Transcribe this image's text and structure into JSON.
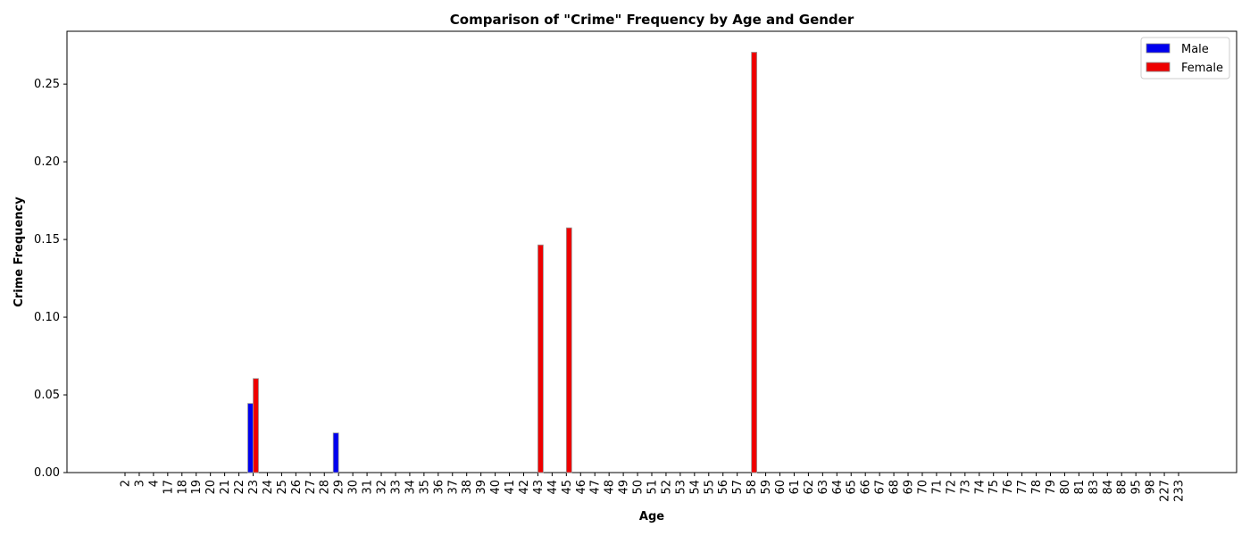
{
  "chart_data": {
    "type": "bar",
    "title": "Comparison of \"Crime\" Frequency by Age and Gender",
    "xlabel": "Age",
    "ylabel": "Crime Frequency",
    "categories": [
      "2",
      "3",
      "4",
      "17",
      "18",
      "19",
      "20",
      "21",
      "22",
      "23",
      "24",
      "25",
      "26",
      "27",
      "28",
      "29",
      "30",
      "31",
      "32",
      "33",
      "34",
      "35",
      "36",
      "37",
      "38",
      "39",
      "40",
      "41",
      "42",
      "43",
      "44",
      "45",
      "46",
      "47",
      "48",
      "49",
      "50",
      "51",
      "52",
      "53",
      "54",
      "55",
      "56",
      "57",
      "58",
      "59",
      "60",
      "61",
      "62",
      "63",
      "64",
      "65",
      "66",
      "67",
      "68",
      "69",
      "70",
      "71",
      "72",
      "73",
      "74",
      "75",
      "76",
      "77",
      "78",
      "79",
      "80",
      "81",
      "83",
      "84",
      "88",
      "95",
      "98",
      "227",
      "233"
    ],
    "series": [
      {
        "name": "Male",
        "color": "#0000ee",
        "values": [
          0,
          0,
          0,
          0,
          0,
          0,
          0,
          0,
          0,
          0.0445,
          0,
          0,
          0,
          0,
          0,
          0.0255,
          0,
          0,
          0,
          0,
          0,
          0,
          0,
          0,
          0,
          0,
          0,
          0,
          0,
          0,
          0,
          0,
          0,
          0,
          0,
          0,
          0,
          0,
          0,
          0,
          0,
          0,
          0,
          0,
          0,
          0,
          0,
          0,
          0,
          0,
          0,
          0,
          0,
          0,
          0,
          0,
          0,
          0,
          0,
          0,
          0,
          0,
          0,
          0,
          0,
          0,
          0,
          0,
          0,
          0,
          0,
          0,
          0,
          0,
          0
        ]
      },
      {
        "name": "Female",
        "color": "#ee0000",
        "values": [
          0,
          0,
          0,
          0,
          0,
          0,
          0,
          0,
          0,
          0.0605,
          0,
          0,
          0,
          0,
          0,
          0,
          0,
          0,
          0,
          0,
          0,
          0,
          0,
          0,
          0,
          0,
          0,
          0,
          0,
          0.1465,
          0,
          0.1575,
          0,
          0,
          0,
          0,
          0,
          0,
          0,
          0,
          0,
          0,
          0,
          0,
          0.2705,
          0,
          0,
          0,
          0,
          0,
          0,
          0,
          0,
          0,
          0,
          0,
          0,
          0,
          0,
          0,
          0,
          0,
          0,
          0,
          0,
          0,
          0,
          0,
          0,
          0,
          0,
          0,
          0,
          0,
          0
        ]
      }
    ],
    "ylim": [
      0,
      0.284
    ],
    "yticks": [
      "0.00",
      "0.05",
      "0.10",
      "0.15",
      "0.20",
      "0.25"
    ],
    "legend_position": "top-right",
    "grid": false
  }
}
